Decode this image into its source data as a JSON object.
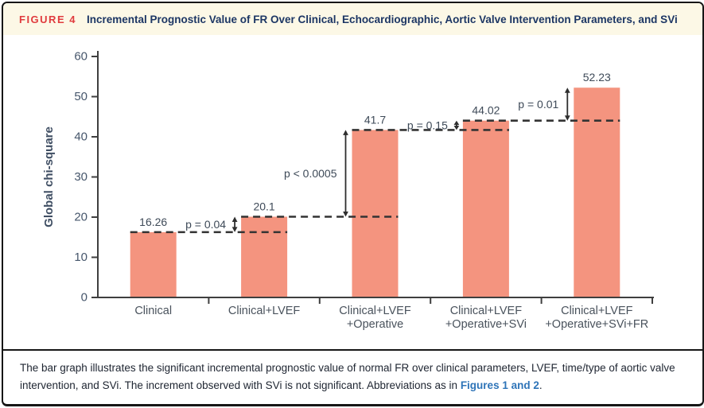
{
  "header": {
    "figure_label": "FIGURE 4",
    "title": "Incremental Prognostic Value of FR Over Clinical, Echocardiographic, Aortic Valve Intervention Parameters, and SVi"
  },
  "caption": {
    "text_before": "The bar graph illustrates the significant incremental prognostic value of normal FR over clinical parameters, LVEF, time/type of aortic valve intervention, and SVi. The increment observed with SVi is not significant. Abbreviations as in ",
    "link_text": "Figures 1 and 2",
    "text_after": "."
  },
  "colors": {
    "bar": "#F4947F",
    "axis": "#3f3f3f",
    "dash": "#333333",
    "arrow": "#2e2e2e",
    "tick_text": "#46566b",
    "axis_title_text": "#3f4e63",
    "category_text": "#49525c",
    "value_text": "#3e4a58",
    "header_bg": "#FCF8E6",
    "figure_label_red": "#E03B3E",
    "title_navy": "#1C3664",
    "link_blue": "#2E74B8",
    "border": "#161616"
  },
  "chart_data": {
    "type": "bar",
    "title": "",
    "xlabel": "",
    "ylabel": "Global chi-square",
    "ylim": [
      0,
      60
    ],
    "yticks": [
      0,
      10,
      20,
      30,
      40,
      50,
      60
    ],
    "grid": false,
    "legend": null,
    "categories": [
      "Clinical",
      "Clinical+LVEF",
      "Clinical+LVEF\n+Operative",
      "Clinical+LVEF\n+Operative+SVi",
      "Clinical+LVEF\n+Operative+SVi+FR"
    ],
    "values": [
      16.26,
      20.1,
      41.7,
      44.02,
      52.23
    ],
    "value_labels": [
      "16.26",
      "20.1",
      "41.7",
      "44.02",
      "52.23"
    ],
    "annotations": [
      {
        "label": "p = 0.04",
        "between": [
          0,
          1
        ]
      },
      {
        "label": "p < 0.0005",
        "between": [
          1,
          2
        ]
      },
      {
        "label": "p = 0.15",
        "between": [
          2,
          3
        ]
      },
      {
        "label": "p = 0.01",
        "between": [
          3,
          4
        ]
      }
    ]
  }
}
